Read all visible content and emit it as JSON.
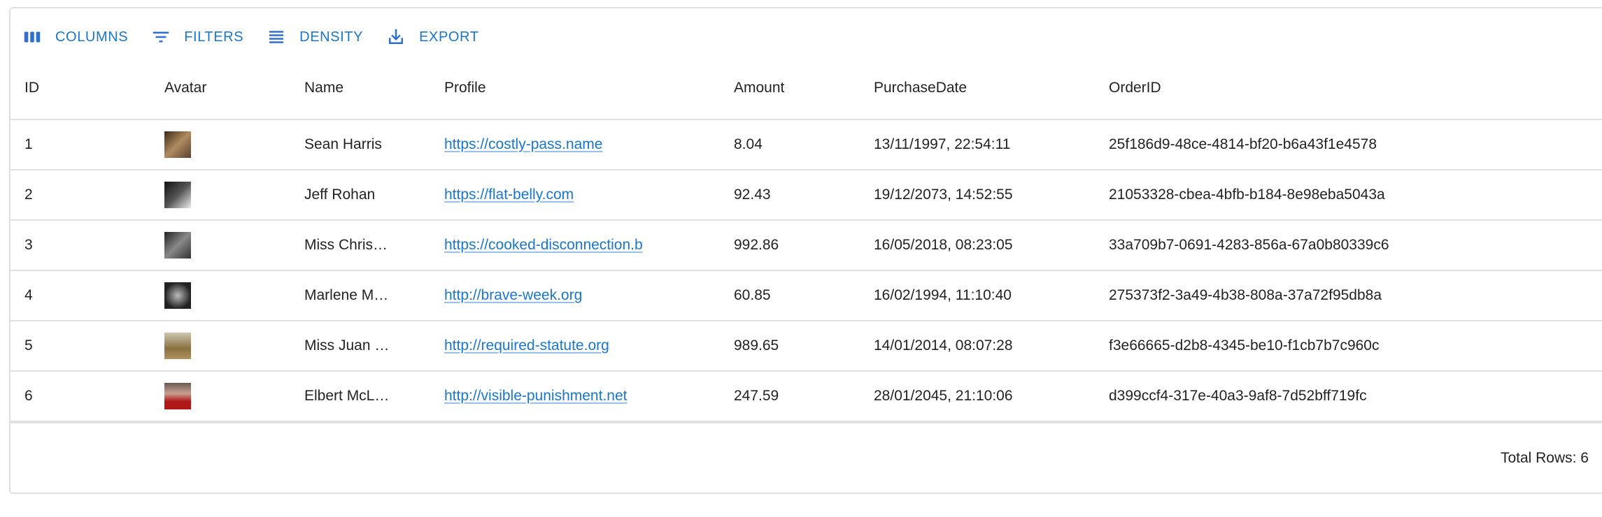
{
  "toolbar": {
    "columns_label": "COLUMNS",
    "filters_label": "FILTERS",
    "density_label": "DENSITY",
    "export_label": "EXPORT",
    "accent_color": "#1976d2"
  },
  "columns": [
    "ID",
    "Avatar",
    "Name",
    "Profile",
    "Amount",
    "PurchaseDate",
    "OrderID"
  ],
  "rows": [
    {
      "id": "1",
      "avatar": "avatar-photo",
      "name": "Sean Harris",
      "profile": "https://costly-pass.name",
      "amount": "8.04",
      "date": "13/11/1997, 22:54:11",
      "order": "25f186d9-48ce-4814-bf20-b6a43f1e4578"
    },
    {
      "id": "2",
      "avatar": "avatar-photo",
      "name": "Jeff Rohan",
      "profile": "https://flat-belly.com",
      "amount": "92.43",
      "date": "19/12/2073, 14:52:55",
      "order": "21053328-cbea-4bfb-b184-8e98eba5043a"
    },
    {
      "id": "3",
      "avatar": "avatar-photo",
      "name": "Miss Chris…",
      "profile": "https://cooked-disconnection.b",
      "amount": "992.86",
      "date": "16/05/2018, 08:23:05",
      "order": "33a709b7-0691-4283-856a-67a0b80339c6"
    },
    {
      "id": "4",
      "avatar": "avatar-photo",
      "name": "Marlene M…",
      "profile": "http://brave-week.org",
      "amount": "60.85",
      "date": "16/02/1994, 11:10:40",
      "order": "275373f2-3a49-4b38-808a-37a72f95db8a"
    },
    {
      "id": "5",
      "avatar": "avatar-photo",
      "name": "Miss Juan …",
      "profile": "http://required-statute.org",
      "amount": "989.65",
      "date": "14/01/2014, 08:07:28",
      "order": "f3e66665-d2b8-4345-be10-f1cb7b7c960c"
    },
    {
      "id": "6",
      "avatar": "avatar-photo",
      "name": "Elbert McL…",
      "profile": "http://visible-punishment.net",
      "amount": "247.59",
      "date": "28/01/2045, 21:10:06",
      "order": "d399ccf4-317e-40a3-9af8-7d52bff719fc"
    }
  ],
  "footer": {
    "total_rows": "Total Rows: 6"
  }
}
